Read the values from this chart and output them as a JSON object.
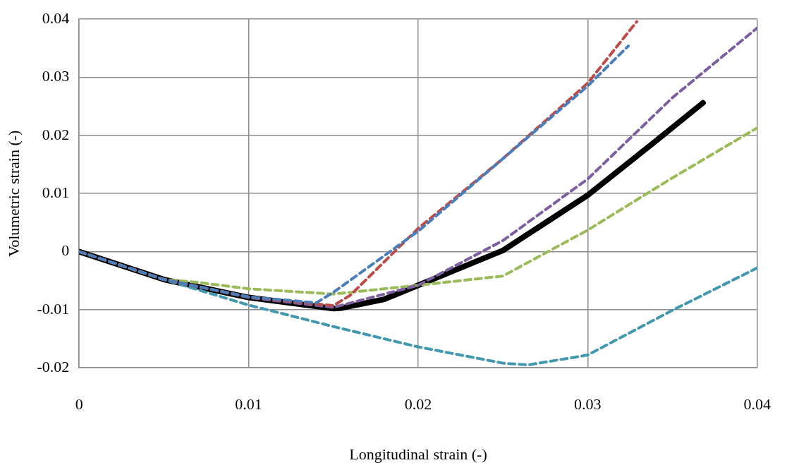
{
  "chart_data": {
    "type": "line",
    "xlabel": "Longitudinal strain (-)",
    "ylabel": "Volumetric strain (-)",
    "xlim": [
      0,
      0.04
    ],
    "xticks": [
      0,
      0.01,
      0.02,
      0.03,
      0.04
    ],
    "ylim": [
      -0.02,
      0.04
    ],
    "yticks": [
      -0.02,
      -0.01,
      0,
      0.01,
      0.02,
      0.03,
      0.04
    ],
    "grid": true,
    "legend": false,
    "marker": "none",
    "series": [
      {
        "color": "#4a7ebb",
        "line_style": "dashed",
        "x": [
          0,
          0.005,
          0.01,
          0.014,
          0.015,
          0.02,
          0.025,
          0.03,
          0.0324
        ],
        "values": [
          0,
          -0.0048,
          -0.0078,
          -0.0088,
          -0.007,
          0.0035,
          0.016,
          0.0285,
          0.0354
        ]
      },
      {
        "color": "#be4b48",
        "line_style": "dashed",
        "x": [
          0,
          0.005,
          0.01,
          0.015,
          0.016,
          0.02,
          0.025,
          0.03,
          0.0329
        ],
        "values": [
          0,
          -0.0048,
          -0.0078,
          -0.0093,
          -0.0075,
          0.004,
          0.016,
          0.029,
          0.0396
        ]
      },
      {
        "color": "#7d5fa0",
        "line_style": "dashed",
        "x": [
          0,
          0.005,
          0.01,
          0.015,
          0.02,
          0.025,
          0.03,
          0.035,
          0.04
        ],
        "values": [
          0,
          -0.0048,
          -0.0079,
          -0.0096,
          -0.0058,
          0.0019,
          0.0125,
          0.0265,
          0.0385
        ]
      },
      {
        "color": "#9bbb59",
        "line_style": "dashed",
        "x": [
          0,
          0.005,
          0.007,
          0.01,
          0.015,
          0.02,
          0.025,
          0.03,
          0.035,
          0.04
        ],
        "values": [
          0,
          -0.0048,
          -0.0053,
          -0.0064,
          -0.0073,
          -0.0058,
          -0.0042,
          0.0037,
          0.0127,
          0.0213
        ]
      },
      {
        "color": "#4198af",
        "line_style": "dashed",
        "x": [
          0,
          0.005,
          0.01,
          0.015,
          0.02,
          0.025,
          0.0265,
          0.03,
          0.035,
          0.04
        ],
        "values": [
          0,
          -0.0048,
          -0.0092,
          -0.0129,
          -0.0164,
          -0.0192,
          -0.0195,
          -0.0178,
          -0.0101,
          -0.0028
        ]
      },
      {
        "color": "#000000",
        "line_style": "solid",
        "x": [
          0,
          0.005,
          0.01,
          0.015,
          0.0155,
          0.018,
          0.02,
          0.025,
          0.03,
          0.034,
          0.0368
        ],
        "values": [
          0,
          -0.0048,
          -0.0079,
          -0.0098,
          -0.0097,
          -0.0082,
          -0.0058,
          0.0002,
          0.0097,
          0.019,
          0.0256
        ]
      }
    ]
  }
}
